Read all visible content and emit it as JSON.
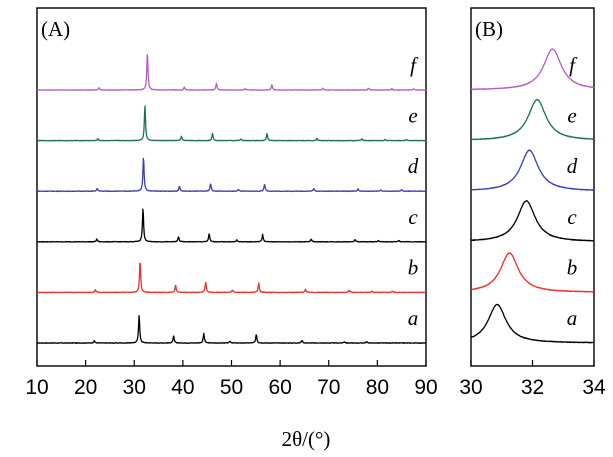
{
  "chart_data": [
    {
      "type": "line",
      "panel_label": "(A)",
      "xlim": [
        10,
        90
      ],
      "x_ticks": [
        "10",
        "20",
        "30",
        "40",
        "50",
        "60",
        "70",
        "80",
        "90"
      ],
      "xlabel": "2θ/(°)",
      "ylabel": "",
      "grid": false,
      "series": [
        {
          "name": "a",
          "color": "#000000",
          "peaks": [
            [
              21.8,
              0.05
            ],
            [
              31.0,
              0.62
            ],
            [
              38.1,
              0.15
            ],
            [
              44.3,
              0.21
            ],
            [
              49.7,
              0.04
            ],
            [
              55.1,
              0.19
            ],
            [
              64.5,
              0.06
            ],
            [
              73.2,
              0.03
            ],
            [
              77.8,
              0.03
            ]
          ]
        },
        {
          "name": "b",
          "color": "#e8322d",
          "peaks": [
            [
              22.0,
              0.06
            ],
            [
              31.2,
              0.7
            ],
            [
              38.5,
              0.16
            ],
            [
              44.7,
              0.23
            ],
            [
              50.2,
              0.05
            ],
            [
              55.6,
              0.21
            ],
            [
              65.2,
              0.07
            ],
            [
              74.2,
              0.05
            ],
            [
              78.9,
              0.03
            ],
            [
              83.1,
              0.03
            ]
          ]
        },
        {
          "name": "c",
          "color": "#000000",
          "peaks": [
            [
              22.3,
              0.06
            ],
            [
              31.8,
              0.74
            ],
            [
              39.1,
              0.11
            ],
            [
              45.4,
              0.18
            ],
            [
              51.1,
              0.04
            ],
            [
              56.4,
              0.16
            ],
            [
              66.4,
              0.06
            ],
            [
              75.4,
              0.05
            ],
            [
              80.2,
              0.03
            ],
            [
              84.4,
              0.03
            ]
          ]
        },
        {
          "name": "d",
          "color": "#3b3fb4",
          "peaks": [
            [
              22.4,
              0.06
            ],
            [
              31.9,
              0.76
            ],
            [
              39.3,
              0.11
            ],
            [
              45.7,
              0.17
            ],
            [
              51.4,
              0.04
            ],
            [
              56.8,
              0.16
            ],
            [
              66.9,
              0.06
            ],
            [
              76.0,
              0.05
            ],
            [
              80.7,
              0.03
            ],
            [
              85.0,
              0.03
            ]
          ]
        },
        {
          "name": "e",
          "color": "#1f6e58",
          "peaks": [
            [
              22.5,
              0.04
            ],
            [
              32.2,
              0.78
            ],
            [
              39.7,
              0.09
            ],
            [
              46.1,
              0.16
            ],
            [
              51.9,
              0.04
            ],
            [
              57.3,
              0.16
            ],
            [
              67.6,
              0.05
            ],
            [
              76.8,
              0.04
            ],
            [
              81.6,
              0.03
            ],
            [
              86.0,
              0.03
            ]
          ]
        },
        {
          "name": "f",
          "color": "#b25fc2",
          "peaks": [
            [
              22.8,
              0.05
            ],
            [
              32.7,
              0.82
            ],
            [
              40.3,
              0.06
            ],
            [
              46.9,
              0.15
            ],
            [
              52.8,
              0.03
            ],
            [
              58.3,
              0.12
            ],
            [
              68.8,
              0.04
            ],
            [
              78.2,
              0.04
            ],
            [
              83.0,
              0.03
            ],
            [
              87.5,
              0.03
            ]
          ]
        }
      ]
    },
    {
      "type": "line",
      "panel_label": "(B)",
      "xlim": [
        30,
        34
      ],
      "x_ticks": [
        "30",
        "32",
        "34"
      ],
      "xlabel": "2θ/(°)",
      "ylabel": "",
      "grid": false,
      "series": [
        {
          "name": "a",
          "color": "#000000",
          "peaks": [
            [
              30.85,
              0.8
            ]
          ]
        },
        {
          "name": "b",
          "color": "#e8322d",
          "peaks": [
            [
              31.25,
              0.82
            ]
          ]
        },
        {
          "name": "c",
          "color": "#000000",
          "peaks": [
            [
              31.8,
              0.85
            ]
          ]
        },
        {
          "name": "d",
          "color": "#3b3fb4",
          "peaks": [
            [
              31.9,
              0.85
            ]
          ]
        },
        {
          "name": "e",
          "color": "#1f6e58",
          "peaks": [
            [
              32.15,
              0.85
            ]
          ]
        },
        {
          "name": "f",
          "color": "#b25fc2",
          "peaks": [
            [
              32.65,
              0.85
            ]
          ]
        }
      ]
    }
  ]
}
